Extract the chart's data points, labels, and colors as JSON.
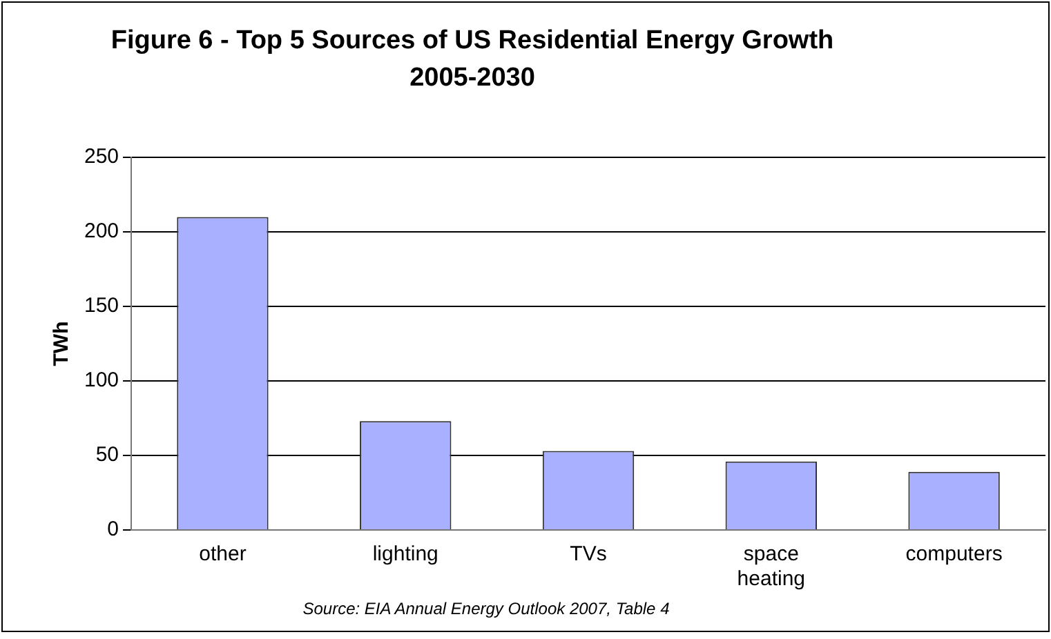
{
  "chart_data": {
    "type": "bar",
    "title": "Figure 6 - Top 5 Sources of US Residential Energy Growth 2005-2030",
    "ylabel": "TWh",
    "categories": [
      "other",
      "lighting",
      "TVs",
      "space heating",
      "computers"
    ],
    "values": [
      210,
      73,
      53,
      46,
      39
    ],
    "color": "#a9b0ff",
    "ylim": [
      0,
      250
    ],
    "yticks": [
      0,
      50,
      100,
      150,
      200,
      250
    ],
    "grid": "y",
    "annotations": [
      "Source: EIA Annual Energy Outlook 2007, Table 4"
    ]
  }
}
